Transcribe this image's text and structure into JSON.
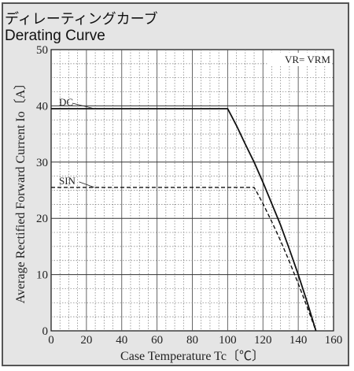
{
  "header": {
    "title_ja": "ディレーティングカーブ",
    "title_en": "Derating Curve"
  },
  "chart_data": {
    "type": "line",
    "xlabel": "Case Temperature  Tc〔℃〕",
    "ylabel": "Average Rectified Forward Current  Io〔A〕",
    "xlim": [
      0,
      160
    ],
    "ylim": [
      0,
      50
    ],
    "xticks": [
      0,
      20,
      40,
      60,
      80,
      100,
      120,
      140,
      160
    ],
    "yticks": [
      0,
      10,
      20,
      30,
      40,
      50
    ],
    "grid": true,
    "annotation": "VR= VRM",
    "colors": {
      "background": "#e5e5e5",
      "plot_bg": "#ffffff",
      "line": "#111111",
      "grid": "#777777"
    },
    "series": [
      {
        "name": "DC",
        "style": "solid",
        "x": [
          0,
          100,
          105,
          110,
          115,
          120,
          125,
          130,
          135,
          140,
          145,
          150
        ],
        "y": [
          39.5,
          39.5,
          36.5,
          33.2,
          30.0,
          26.4,
          22.6,
          18.8,
          14.5,
          10.0,
          5.2,
          0
        ]
      },
      {
        "name": "SIN",
        "style": "dashed",
        "x": [
          0,
          115,
          117,
          120,
          125,
          130,
          135,
          140,
          145,
          150
        ],
        "y": [
          25.5,
          25.5,
          24.4,
          22.6,
          19.4,
          16.0,
          12.3,
          8.4,
          4.3,
          0
        ]
      }
    ]
  }
}
